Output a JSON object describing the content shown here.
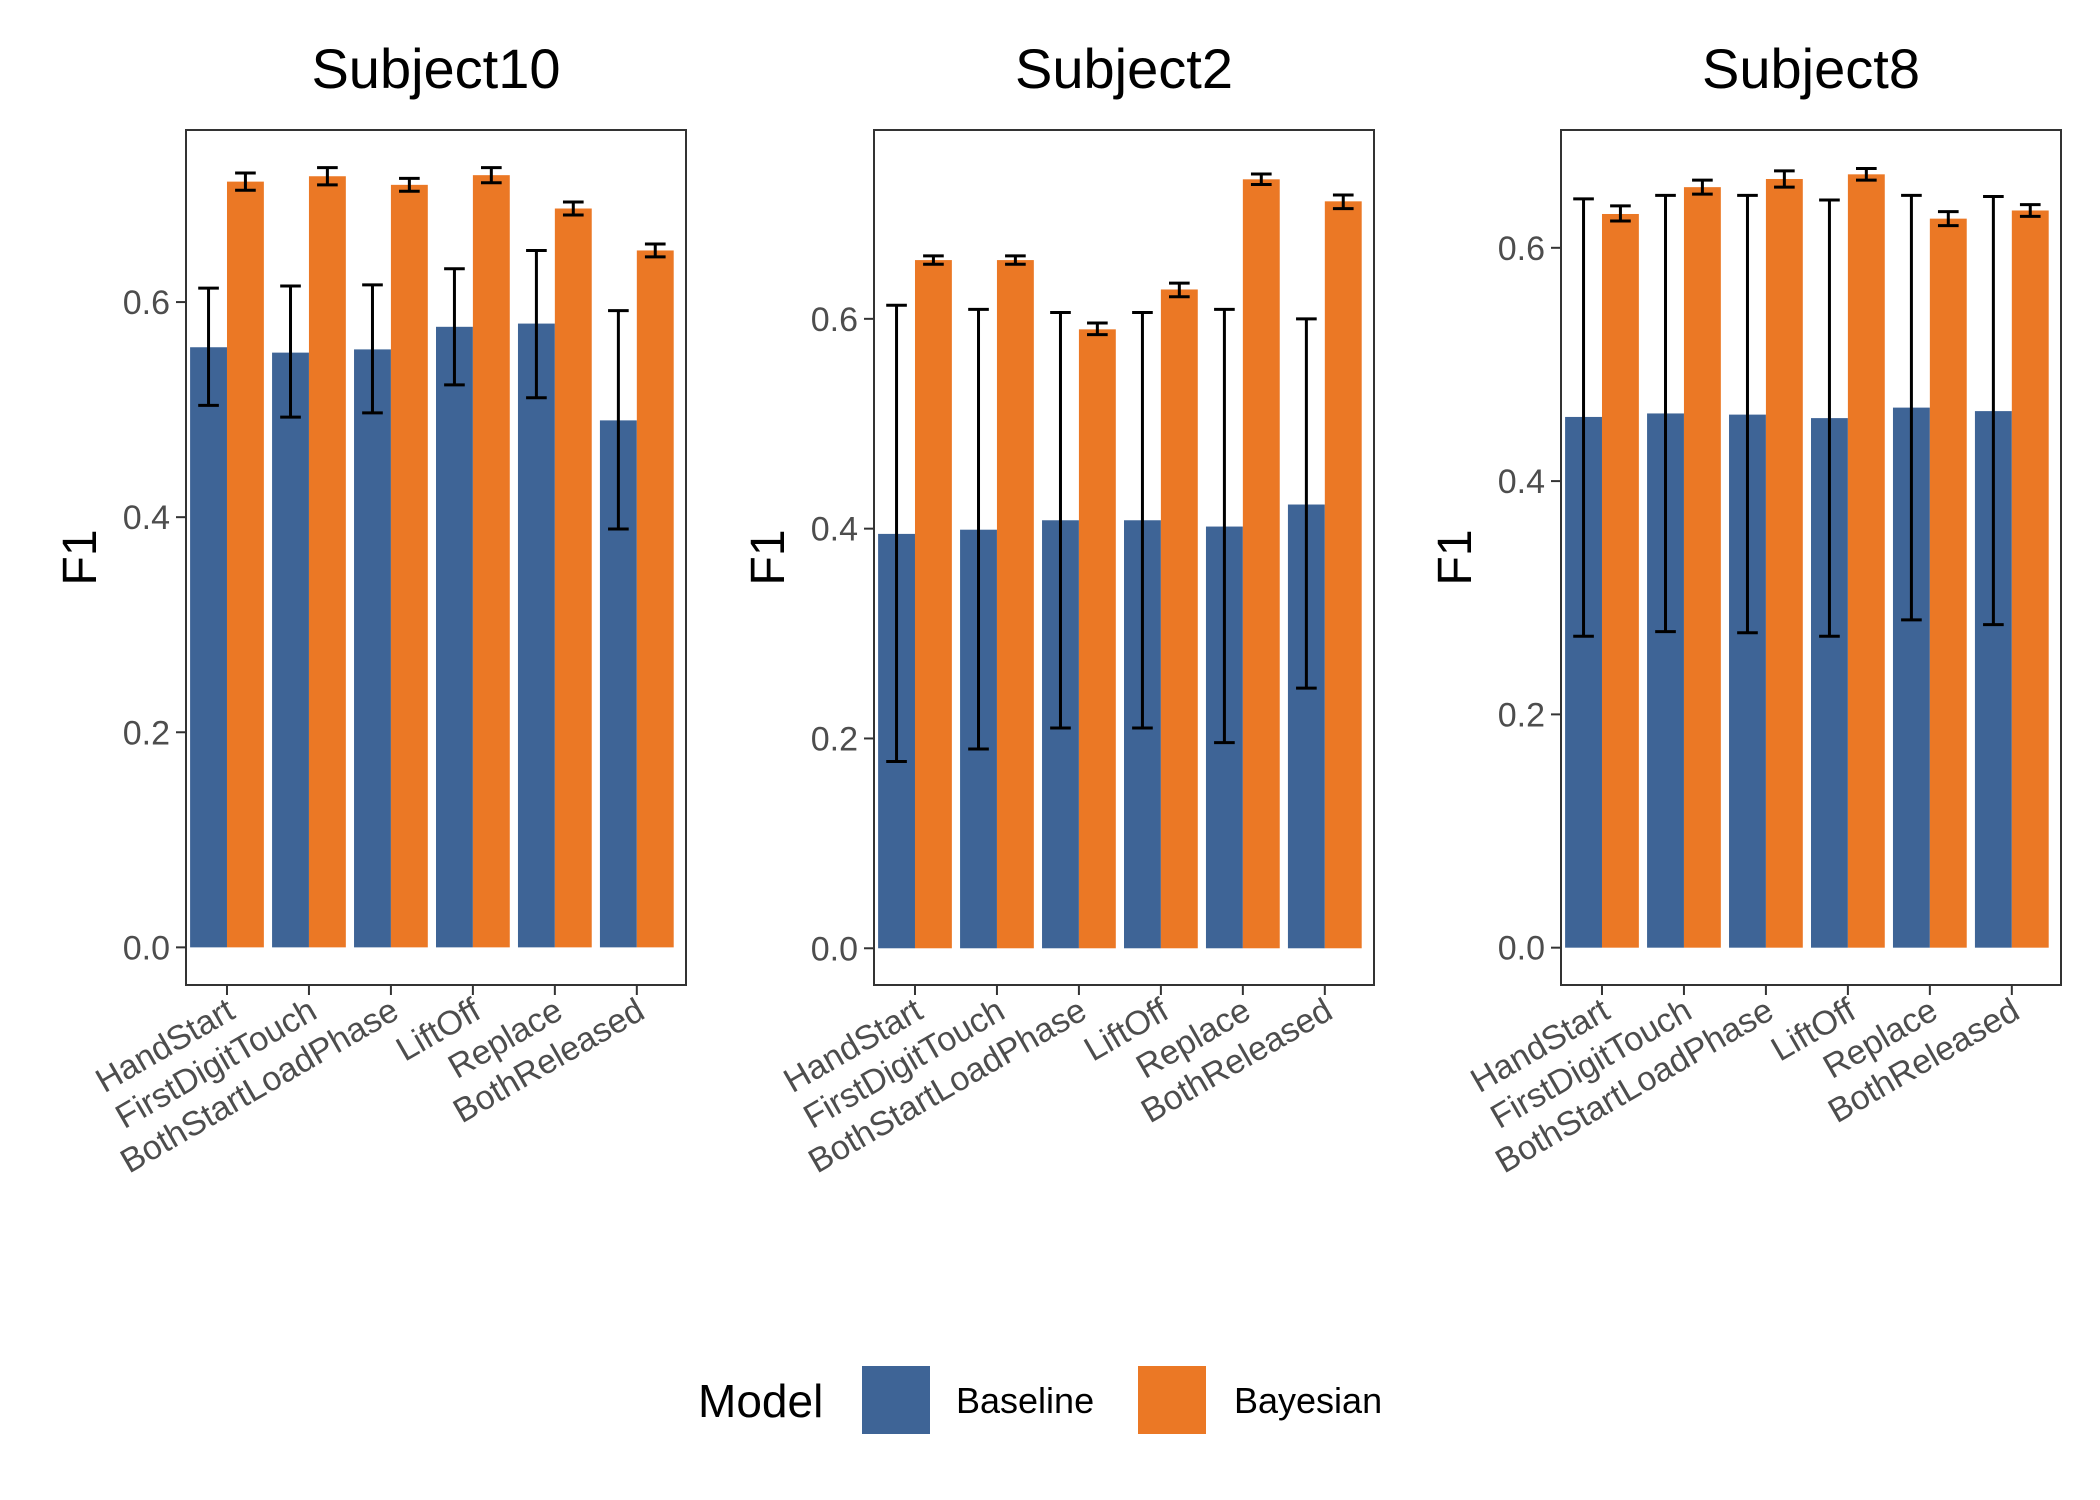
{
  "legend": {
    "title": "Model",
    "items": [
      {
        "label": "Baseline",
        "color": "#3E6496"
      },
      {
        "label": "Bayesian",
        "color": "#EB7825"
      }
    ]
  },
  "chart_data": [
    {
      "type": "bar",
      "title": "Subject10",
      "ylabel": "F1",
      "xlabel": "",
      "ylim": [
        -0.035,
        0.76
      ],
      "yticks": [
        "0.0",
        "0.2",
        "0.4",
        "0.6"
      ],
      "categories": [
        "HandStart",
        "FirstDigitTouch",
        "BothStartLoadPhase",
        "LiftOff",
        "Replace",
        "BothReleased"
      ],
      "series": [
        {
          "name": "Baseline",
          "values": [
            0.558,
            0.553,
            0.556,
            0.577,
            0.58,
            0.49
          ],
          "err_low": [
            0.504,
            0.493,
            0.497,
            0.523,
            0.511,
            0.389
          ],
          "err_high": [
            0.613,
            0.615,
            0.616,
            0.631,
            0.648,
            0.592
          ]
        },
        {
          "name": "Bayesian",
          "values": [
            0.712,
            0.717,
            0.709,
            0.718,
            0.687,
            0.648
          ],
          "err_low": [
            0.704,
            0.709,
            0.703,
            0.711,
            0.681,
            0.642
          ],
          "err_high": [
            0.72,
            0.725,
            0.715,
            0.725,
            0.693,
            0.654
          ]
        }
      ]
    },
    {
      "type": "bar",
      "title": "Subject2",
      "ylabel": "F1",
      "xlabel": "",
      "ylim": [
        -0.035,
        0.78
      ],
      "yticks": [
        "0.0",
        "0.2",
        "0.4",
        "0.6"
      ],
      "categories": [
        "HandStart",
        "FirstDigitTouch",
        "BothStartLoadPhase",
        "LiftOff",
        "Replace",
        "BothReleased"
      ],
      "series": [
        {
          "name": "Baseline",
          "values": [
            0.395,
            0.399,
            0.408,
            0.408,
            0.402,
            0.423
          ],
          "err_low": [
            0.178,
            0.19,
            0.21,
            0.21,
            0.196,
            0.248
          ],
          "err_high": [
            0.613,
            0.609,
            0.606,
            0.606,
            0.609,
            0.6
          ]
        },
        {
          "name": "Bayesian",
          "values": [
            0.656,
            0.656,
            0.59,
            0.628,
            0.733,
            0.712
          ],
          "err_low": [
            0.652,
            0.652,
            0.585,
            0.621,
            0.728,
            0.705
          ],
          "err_high": [
            0.66,
            0.66,
            0.596,
            0.634,
            0.738,
            0.718
          ]
        }
      ]
    },
    {
      "type": "bar",
      "title": "Subject8",
      "ylabel": "F1",
      "xlabel": "",
      "ylim": [
        -0.032,
        0.701
      ],
      "yticks": [
        "0.0",
        "0.2",
        "0.4",
        "0.6"
      ],
      "categories": [
        "HandStart",
        "FirstDigitTouch",
        "BothStartLoadPhase",
        "LiftOff",
        "Replace",
        "BothReleased"
      ],
      "series": [
        {
          "name": "Baseline",
          "values": [
            0.455,
            0.458,
            0.457,
            0.454,
            0.463,
            0.46
          ],
          "err_low": [
            0.267,
            0.271,
            0.27,
            0.267,
            0.281,
            0.277
          ],
          "err_high": [
            0.642,
            0.645,
            0.645,
            0.641,
            0.645,
            0.644
          ]
        },
        {
          "name": "Bayesian",
          "values": [
            0.629,
            0.652,
            0.659,
            0.663,
            0.625,
            0.632
          ],
          "err_low": [
            0.623,
            0.646,
            0.652,
            0.658,
            0.619,
            0.627
          ],
          "err_high": [
            0.636,
            0.658,
            0.666,
            0.668,
            0.631,
            0.637
          ]
        }
      ]
    }
  ]
}
